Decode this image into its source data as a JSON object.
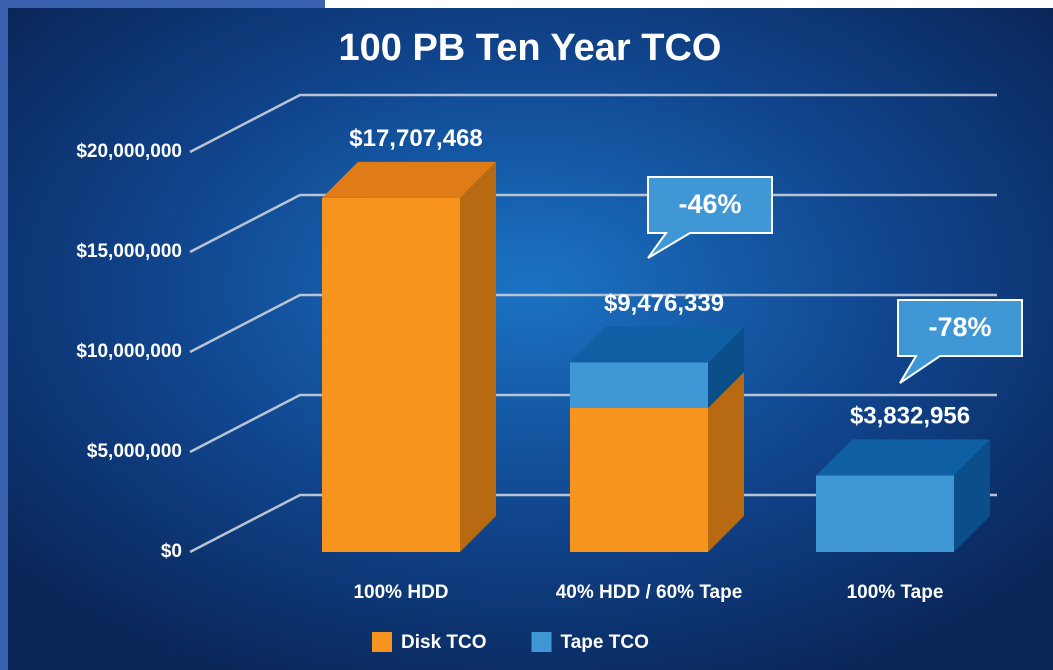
{
  "chart_data": {
    "type": "bar3d_stacked",
    "title": "100 PB Ten Year TCO",
    "categories": [
      "100% HDD",
      "40% HDD / 60% Tape",
      "100% Tape"
    ],
    "series": [
      {
        "name": "Disk TCO",
        "color": "#f7941d",
        "values": [
          17707468,
          7200000,
          0
        ]
      },
      {
        "name": "Tape TCO",
        "color": "#3f97d5",
        "values": [
          0,
          2276339,
          3832956
        ]
      }
    ],
    "totals": [
      17707468,
      9476339,
      3832956
    ],
    "total_labels": [
      "$17,707,468",
      "$9,476,339",
      "$3,832,956"
    ],
    "annotations": [
      "-46%",
      "-78%"
    ],
    "ylim": [
      0,
      20000000
    ],
    "yticks": [
      {
        "value": 0,
        "label": "$0"
      },
      {
        "value": 5000000,
        "label": "$5,000,000"
      },
      {
        "value": 10000000,
        "label": "$10,000,000"
      },
      {
        "value": 15000000,
        "label": "$15,000,000"
      },
      {
        "value": 20000000,
        "label": "$20,000,000"
      }
    ],
    "grid": true
  }
}
